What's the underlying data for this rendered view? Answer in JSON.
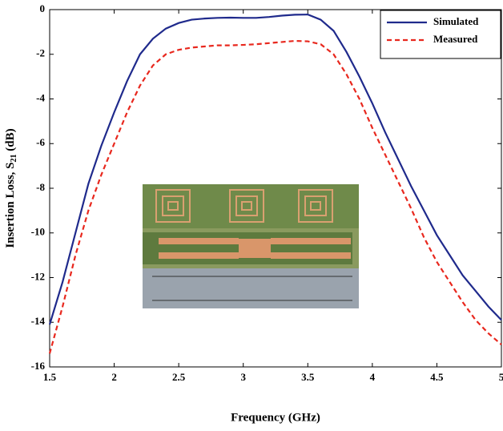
{
  "chart_data": {
    "type": "line",
    "xlabel": "Frequency (GHz)",
    "ylabel": [
      "Insertion Loss, S",
      "21",
      " (dB)"
    ],
    "x": [
      1.5,
      1.6,
      1.7,
      1.8,
      1.9,
      2.0,
      2.1,
      2.2,
      2.3,
      2.4,
      2.5,
      2.6,
      2.7,
      2.8,
      2.9,
      3.0,
      3.1,
      3.2,
      3.3,
      3.4,
      3.5,
      3.6,
      3.7,
      3.8,
      3.9,
      4.0,
      4.1,
      4.2,
      4.3,
      4.4,
      4.5,
      4.6,
      4.7,
      4.8,
      4.9,
      5.0
    ],
    "series": [
      {
        "name": "Simulated",
        "color": "#1f2a8c",
        "dash": false,
        "values": [
          -14.1,
          -12.2,
          -10.0,
          -7.8,
          -6.1,
          -4.6,
          -3.2,
          -2.0,
          -1.3,
          -0.85,
          -0.6,
          -0.45,
          -0.4,
          -0.37,
          -0.36,
          -0.37,
          -0.37,
          -0.33,
          -0.27,
          -0.23,
          -0.22,
          -0.45,
          -0.95,
          -1.9,
          -3.0,
          -4.2,
          -5.5,
          -6.7,
          -7.9,
          -9.0,
          -10.1,
          -11.0,
          -11.9,
          -12.6,
          -13.3,
          -13.9
        ]
      },
      {
        "name": "Measured",
        "color": "#e8281e",
        "dash": true,
        "values": [
          -15.4,
          -13.3,
          -11.0,
          -9.0,
          -7.4,
          -6.0,
          -4.6,
          -3.4,
          -2.5,
          -2.0,
          -1.8,
          -1.7,
          -1.65,
          -1.6,
          -1.6,
          -1.58,
          -1.55,
          -1.5,
          -1.45,
          -1.4,
          -1.42,
          -1.55,
          -2.0,
          -2.9,
          -4.0,
          -5.3,
          -6.5,
          -7.7,
          -8.9,
          -10.2,
          -11.3,
          -12.2,
          -13.1,
          -13.9,
          -14.5,
          -15.0
        ]
      }
    ],
    "xlim": [
      1.5,
      5
    ],
    "xticks": [
      1.5,
      2,
      2.5,
      3,
      3.5,
      4,
      4.5,
      5
    ],
    "ylim": [
      -16,
      0
    ],
    "yticks": [
      -16,
      -14,
      -12,
      -10,
      -8,
      -6,
      -4,
      -2,
      0
    ],
    "grid": false,
    "legend": "upper right"
  }
}
